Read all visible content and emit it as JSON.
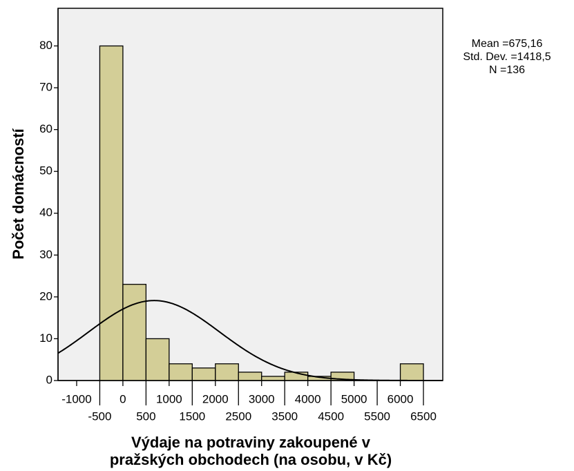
{
  "chart_data": {
    "type": "histogram",
    "ylabel": "Počet domácností",
    "xlabel": [
      "Výdaje na potraviny zakoupené v",
      "pražských obchodech (na osobu, v Kč)"
    ],
    "bins": [
      -500,
      0,
      500,
      1000,
      1500,
      2000,
      2500,
      3000,
      3500,
      4000,
      4500,
      5000,
      5500,
      6000,
      6500
    ],
    "counts": [
      80,
      23,
      10,
      4,
      3,
      4,
      2,
      1,
      2,
      1,
      2,
      0,
      0,
      4
    ],
    "color": "#d3ce97",
    "xlim": [
      -1403,
      6918
    ],
    "ylim": [
      0,
      89
    ],
    "xticks": [
      -1000,
      -500,
      0,
      500,
      1000,
      1500,
      2000,
      2500,
      3000,
      3500,
      4000,
      4500,
      5000,
      5500,
      6000,
      6500
    ],
    "yticks": [
      0,
      10,
      20,
      30,
      40,
      50,
      60,
      70,
      80
    ],
    "normal_curve": {
      "mean": 675.16,
      "std": 1418.5,
      "n": 136
    },
    "annotations": [
      "Mean =675,16",
      "Std. Dev. =1418,5",
      "N =136"
    ]
  }
}
